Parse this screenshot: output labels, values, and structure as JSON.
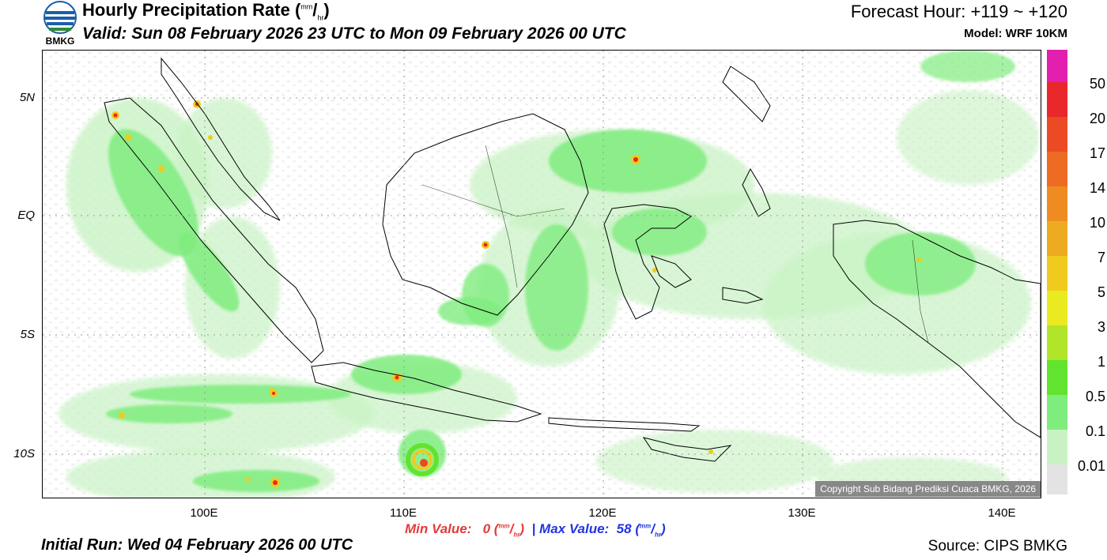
{
  "header": {
    "title_main": "Hourly Precipitation Rate (",
    "title_unit_sup": "mm",
    "title_unit_sep": "/",
    "title_unit_sub": "hr",
    "title_close": ")",
    "valid": "Valid: Sun 08 February 2026 23 UTC to Mon 09 February 2026 00 UTC",
    "forecast_hour": "Forecast Hour: +119 ~ +120",
    "model": "Model: WRF 10KM"
  },
  "logo": {
    "text": "BMKG",
    "icon": "bmkg-logo-icon"
  },
  "map": {
    "lat_ticks": [
      "5N",
      "EQ",
      "5S",
      "10S"
    ],
    "lon_ticks": [
      "100E",
      "110E",
      "120E",
      "130E",
      "140E"
    ],
    "copyright": "Copyright Sub Bidang Prediksi Cuaca BMKG, 2026"
  },
  "legend": {
    "colors": [
      "#e31fb0",
      "#e8282a",
      "#eb4a24",
      "#ed6b22",
      "#ee8c22",
      "#eeab20",
      "#efcb1d",
      "#eaea20",
      "#b1e52a",
      "#62e32d",
      "#7fec7e",
      "#c8f2c3",
      "#e3e3e3"
    ],
    "labels": [
      "50",
      "20",
      "17",
      "14",
      "10",
      "7",
      "5",
      "3",
      "1",
      "0.5",
      "0.1",
      "0.01"
    ]
  },
  "footer": {
    "min_label": "Min Value:",
    "min_value": "0",
    "max_label": "Max Value:",
    "max_value": "58",
    "separator": "|",
    "unit_open": "(",
    "unit_sup": "mm",
    "unit_sep": "/",
    "unit_sub": "hr",
    "unit_close": ")",
    "initial_run": "Initial Run: Wed 04 February 2026 00 UTC",
    "source": "Source: CIPS BMKG"
  }
}
